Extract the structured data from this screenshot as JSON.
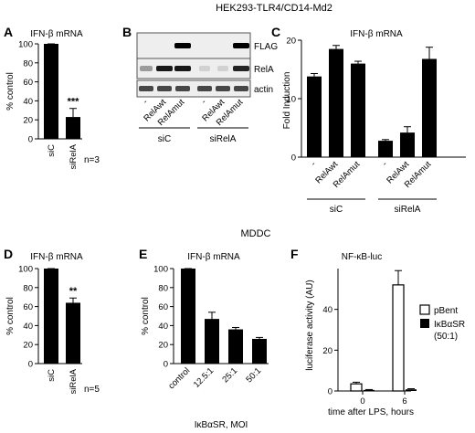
{
  "header": {
    "cell_line": "HEK293-TLR4/CD14-Md2",
    "section2": "MDDC"
  },
  "panels": {
    "A": {
      "letter": "A",
      "title": "IFN-β mRNA",
      "ylabel": "% control",
      "n_label": "n=3",
      "ticks": [
        "0",
        "20",
        "40",
        "60",
        "80",
        "100"
      ],
      "categories": [
        "siC",
        "siRelA"
      ],
      "sig": [
        "",
        "***"
      ]
    },
    "B": {
      "letter": "B",
      "bands": [
        "FLAG",
        "RelA",
        "actin"
      ],
      "lanes": [
        "-",
        "RelAwt",
        "RelAmut",
        "-",
        "RelAwt",
        "RelAmut"
      ],
      "groups": [
        "siC",
        "siRelA"
      ]
    },
    "C": {
      "letter": "C",
      "title": "IFN-β mRNA",
      "ylabel": "Fold Induction",
      "ticks": [
        "0",
        "10",
        "20"
      ],
      "categories": [
        "-",
        "RelAwt",
        "RelAmut",
        "-",
        "RelAwt",
        "RelAmut"
      ],
      "groups": [
        "siC",
        "siRelA"
      ]
    },
    "D": {
      "letter": "D",
      "title": "IFN-β mRNA",
      "ylabel": "% control",
      "n_label": "n=5",
      "ticks": [
        "0",
        "20",
        "40",
        "60",
        "80",
        "100"
      ],
      "categories": [
        "siC",
        "siRelA"
      ],
      "sig": [
        "",
        "**"
      ]
    },
    "E": {
      "letter": "E",
      "title": "IFN-β mRNA",
      "ylabel": "% control",
      "xlabel": "IκBαSR, MOI",
      "ticks": [
        "0",
        "20",
        "40",
        "60",
        "80",
        "100"
      ],
      "categories": [
        "control",
        "12.5:1",
        "25:1",
        "50:1"
      ]
    },
    "F": {
      "letter": "F",
      "title": "NF-κB-luc",
      "ylabel": "luciferase activity (AU)",
      "xlabel": "time after LPS, hours",
      "ticks": [
        "0",
        "20",
        "40"
      ],
      "xticks": [
        "0",
        "6"
      ],
      "legend": [
        "pBent",
        "IκBαSR",
        "(50:1)"
      ]
    }
  },
  "chart_data": [
    {
      "panel": "A",
      "type": "bar",
      "categories": [
        "siC",
        "siRelA"
      ],
      "values": [
        100,
        23
      ],
      "errors": [
        0,
        9
      ],
      "ylim": [
        0,
        100
      ]
    },
    {
      "panel": "C",
      "type": "bar",
      "categories": [
        "siC -",
        "siC RelAwt",
        "siC RelAmut",
        "siRelA -",
        "siRelA RelAwt",
        "siRelA RelAmut"
      ],
      "values": [
        13.8,
        18.5,
        16.0,
        2.8,
        4.2,
        16.8
      ],
      "errors": [
        0.5,
        0.6,
        0.4,
        0.2,
        1.0,
        2.0
      ],
      "ylim": [
        0,
        20
      ]
    },
    {
      "panel": "D",
      "type": "bar",
      "categories": [
        "siC",
        "siRelA"
      ],
      "values": [
        100,
        64
      ],
      "errors": [
        0,
        5
      ],
      "ylim": [
        0,
        100
      ]
    },
    {
      "panel": "E",
      "type": "bar",
      "categories": [
        "control",
        "12.5:1",
        "25:1",
        "50:1"
      ],
      "values": [
        100,
        47,
        36,
        26
      ],
      "errors": [
        0,
        7,
        2,
        1.5
      ],
      "ylim": [
        0,
        100
      ]
    },
    {
      "panel": "F",
      "type": "bar",
      "x": [
        "0",
        "6"
      ],
      "series": [
        {
          "name": "pBent",
          "values": [
            3.5,
            52
          ],
          "errors": [
            0.8,
            7
          ]
        },
        {
          "name": "IκBαSR",
          "values": [
            0.5,
            0.8
          ],
          "errors": [
            0.2,
            0.3
          ]
        }
      ],
      "ylim": [
        0,
        60
      ]
    }
  ]
}
